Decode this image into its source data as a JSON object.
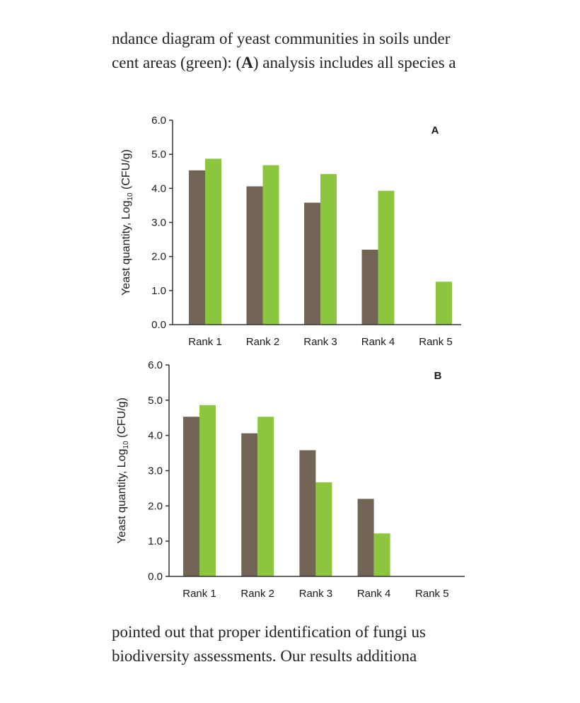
{
  "caption": {
    "line1": "ndance diagram of yeast communities in soils under",
    "line2_pre": "cent areas (green): (",
    "line2_bold": "A",
    "line2_post": ") analysis includes all species a"
  },
  "body_text": {
    "line1": "pointed out that proper identification of fungi us",
    "line2_words": [
      "biodiversity",
      "assessments.",
      "Our",
      "results",
      "additiona"
    ]
  },
  "colors": {
    "series1": "#726556",
    "series2": "#8cc63f",
    "axis": "#333333"
  },
  "chart_data": [
    {
      "type": "bar",
      "panel_label": "A",
      "ylabel": "Yeast quantity, Log",
      "ylabel_sub": "10",
      "ylabel_post": " (CFU/g)",
      "categories": [
        "Rank 1",
        "Rank 2",
        "Rank 3",
        "Rank 4",
        "Rank 5"
      ],
      "series": [
        {
          "values": [
            4.53,
            4.06,
            3.58,
            2.2,
            0
          ]
        },
        {
          "values": [
            4.87,
            4.68,
            4.42,
            3.93,
            1.26
          ]
        }
      ],
      "ylim": [
        0,
        6
      ],
      "yticks": [
        "0.0",
        "1.0",
        "2.0",
        "3.0",
        "4.0",
        "5.0",
        "6.0"
      ],
      "grid": false
    },
    {
      "type": "bar",
      "panel_label": "B",
      "ylabel": "Yeast quantity, Log",
      "ylabel_sub": "10",
      "ylabel_post": " (CFU/g)",
      "categories": [
        "Rank 1",
        "Rank 2",
        "Rank 3",
        "Rank 4",
        "Rank 5"
      ],
      "series": [
        {
          "values": [
            4.53,
            4.06,
            3.58,
            2.2,
            0
          ]
        },
        {
          "values": [
            4.86,
            4.53,
            2.67,
            1.22,
            0
          ]
        }
      ],
      "ylim": [
        0,
        6
      ],
      "yticks": [
        "0.0",
        "1.0",
        "2.0",
        "3.0",
        "4.0",
        "5.0",
        "6.0"
      ],
      "grid": false
    }
  ]
}
